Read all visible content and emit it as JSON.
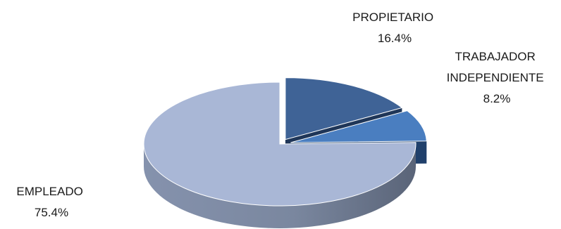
{
  "chart_data": {
    "type": "pie",
    "style": "3d-exploded",
    "title": "",
    "slices": [
      {
        "label_lines": [
          "PROPIETARIO"
        ],
        "value": 16.4,
        "value_text": "16.4%",
        "color": "#3f6396",
        "side_color": "#1f3658"
      },
      {
        "label_lines": [
          "TRABAJADOR",
          "INDEPENDIENTE"
        ],
        "value": 8.2,
        "value_text": "8.2%",
        "color": "#4a7ec0",
        "side_color": "#20406b"
      },
      {
        "label_lines": [
          "EMPLEADO"
        ],
        "value": 75.4,
        "value_text": "75.4%",
        "color": "#a9b7d6",
        "side_color": "#7d8aa6"
      }
    ]
  }
}
